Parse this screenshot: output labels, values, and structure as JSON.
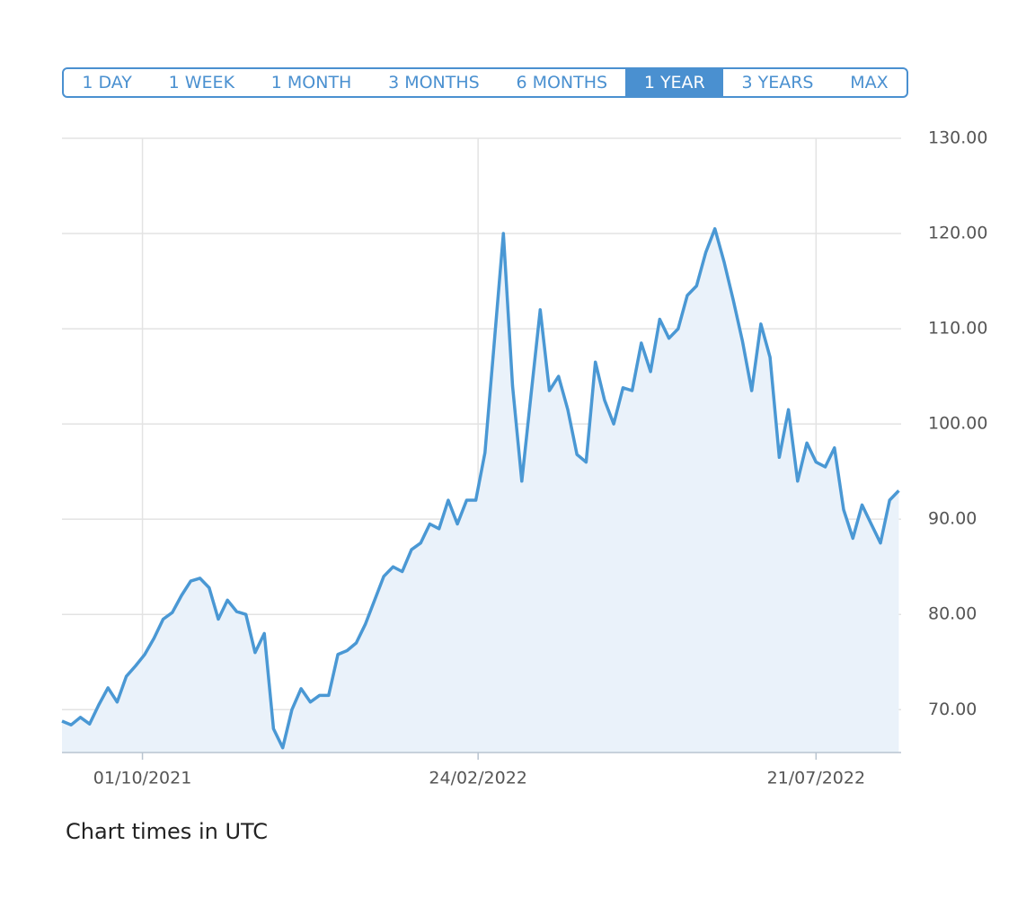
{
  "range_buttons": [
    {
      "label": "1 DAY"
    },
    {
      "label": "1 WEEK"
    },
    {
      "label": "1 MONTH"
    },
    {
      "label": "3 MONTHS"
    },
    {
      "label": "6 MONTHS"
    },
    {
      "label": "1 YEAR",
      "selected": true
    },
    {
      "label": "3 YEARS"
    },
    {
      "label": "MAX"
    }
  ],
  "chart_data": {
    "type": "area",
    "color": "#4a98d4",
    "fill_color": "#eaf2fa",
    "grid": true,
    "y_axis_side": "right",
    "x": [
      "2021-08-27",
      "2021-08-31",
      "2021-09-04",
      "2021-09-08",
      "2021-09-12",
      "2021-09-16",
      "2021-09-20",
      "2021-09-24",
      "2021-09-28",
      "2021-10-02",
      "2021-10-06",
      "2021-10-10",
      "2021-10-14",
      "2021-10-18",
      "2021-10-22",
      "2021-10-26",
      "2021-10-30",
      "2021-11-03",
      "2021-11-07",
      "2021-11-11",
      "2021-11-15",
      "2021-11-19",
      "2021-11-23",
      "2021-11-27",
      "2021-12-01",
      "2021-12-05",
      "2021-12-09",
      "2021-12-13",
      "2021-12-17",
      "2021-12-21",
      "2021-12-25",
      "2021-12-29",
      "2022-01-02",
      "2022-01-06",
      "2022-01-10",
      "2022-01-14",
      "2022-01-18",
      "2022-01-22",
      "2022-01-26",
      "2022-01-30",
      "2022-02-03",
      "2022-02-07",
      "2022-02-11",
      "2022-02-15",
      "2022-02-19",
      "2022-02-23",
      "2022-02-27",
      "2022-03-03",
      "2022-03-07",
      "2022-03-11",
      "2022-03-15",
      "2022-03-19",
      "2022-03-23",
      "2022-03-27",
      "2022-03-31",
      "2022-04-04",
      "2022-04-08",
      "2022-04-12",
      "2022-04-16",
      "2022-04-20",
      "2022-04-24",
      "2022-04-28",
      "2022-05-02",
      "2022-05-06",
      "2022-05-10",
      "2022-05-14",
      "2022-05-18",
      "2022-05-22",
      "2022-05-26",
      "2022-05-30",
      "2022-06-03",
      "2022-06-07",
      "2022-06-11",
      "2022-06-15",
      "2022-06-19",
      "2022-06-23",
      "2022-06-27",
      "2022-07-01",
      "2022-07-05",
      "2022-07-09",
      "2022-07-13",
      "2022-07-17",
      "2022-07-21",
      "2022-07-25",
      "2022-07-29",
      "2022-08-02",
      "2022-08-06",
      "2022-08-10",
      "2022-08-14",
      "2022-08-18",
      "2022-08-22",
      "2022-08-26"
    ],
    "values": [
      68.8,
      68.4,
      69.2,
      68.5,
      70.5,
      72.3,
      70.8,
      73.5,
      74.6,
      75.8,
      77.5,
      79.5,
      80.2,
      82.0,
      83.5,
      83.8,
      82.8,
      79.5,
      81.5,
      80.3,
      80.0,
      76.0,
      78.0,
      68.0,
      66.0,
      70.0,
      72.2,
      70.8,
      71.5,
      71.5,
      75.8,
      76.2,
      77.0,
      79.0,
      81.5,
      84.0,
      85.0,
      84.5,
      86.8,
      87.5,
      89.5,
      89.0,
      92.0,
      89.5,
      92.0,
      92.0,
      97.0,
      108.5,
      120.0,
      104.0,
      94.0,
      103.0,
      112.0,
      103.5,
      105.0,
      101.5,
      96.8,
      96.0,
      106.5,
      102.5,
      100.0,
      103.8,
      103.5,
      108.5,
      105.5,
      111.0,
      109.0,
      110.0,
      113.5,
      114.5,
      118.0,
      120.5,
      117.0,
      113.0,
      108.7,
      103.5,
      110.5,
      107.0,
      96.5,
      101.5,
      94.0,
      98.0,
      96.0,
      95.5,
      97.5,
      91.0,
      88.0,
      91.5,
      89.5,
      87.5,
      92.0,
      93.0
    ],
    "xlim": [
      "2021-08-27",
      "2022-08-27"
    ],
    "xticks": [
      {
        "value": "2021-10-01",
        "label": "01/10/2021"
      },
      {
        "value": "2022-02-24",
        "label": "24/02/2022"
      },
      {
        "value": "2022-07-21",
        "label": "21/07/2022"
      }
    ],
    "ylim": [
      65.5,
      130
    ],
    "yticks": [
      {
        "value": 70,
        "label": "70.00"
      },
      {
        "value": 80,
        "label": "80.00"
      },
      {
        "value": 90,
        "label": "90.00"
      },
      {
        "value": 100,
        "label": "100.00"
      },
      {
        "value": 110,
        "label": "110.00"
      },
      {
        "value": 120,
        "label": "120.00"
      },
      {
        "value": 130,
        "label": "130.00"
      }
    ]
  },
  "footer_note": "Chart times in UTC"
}
